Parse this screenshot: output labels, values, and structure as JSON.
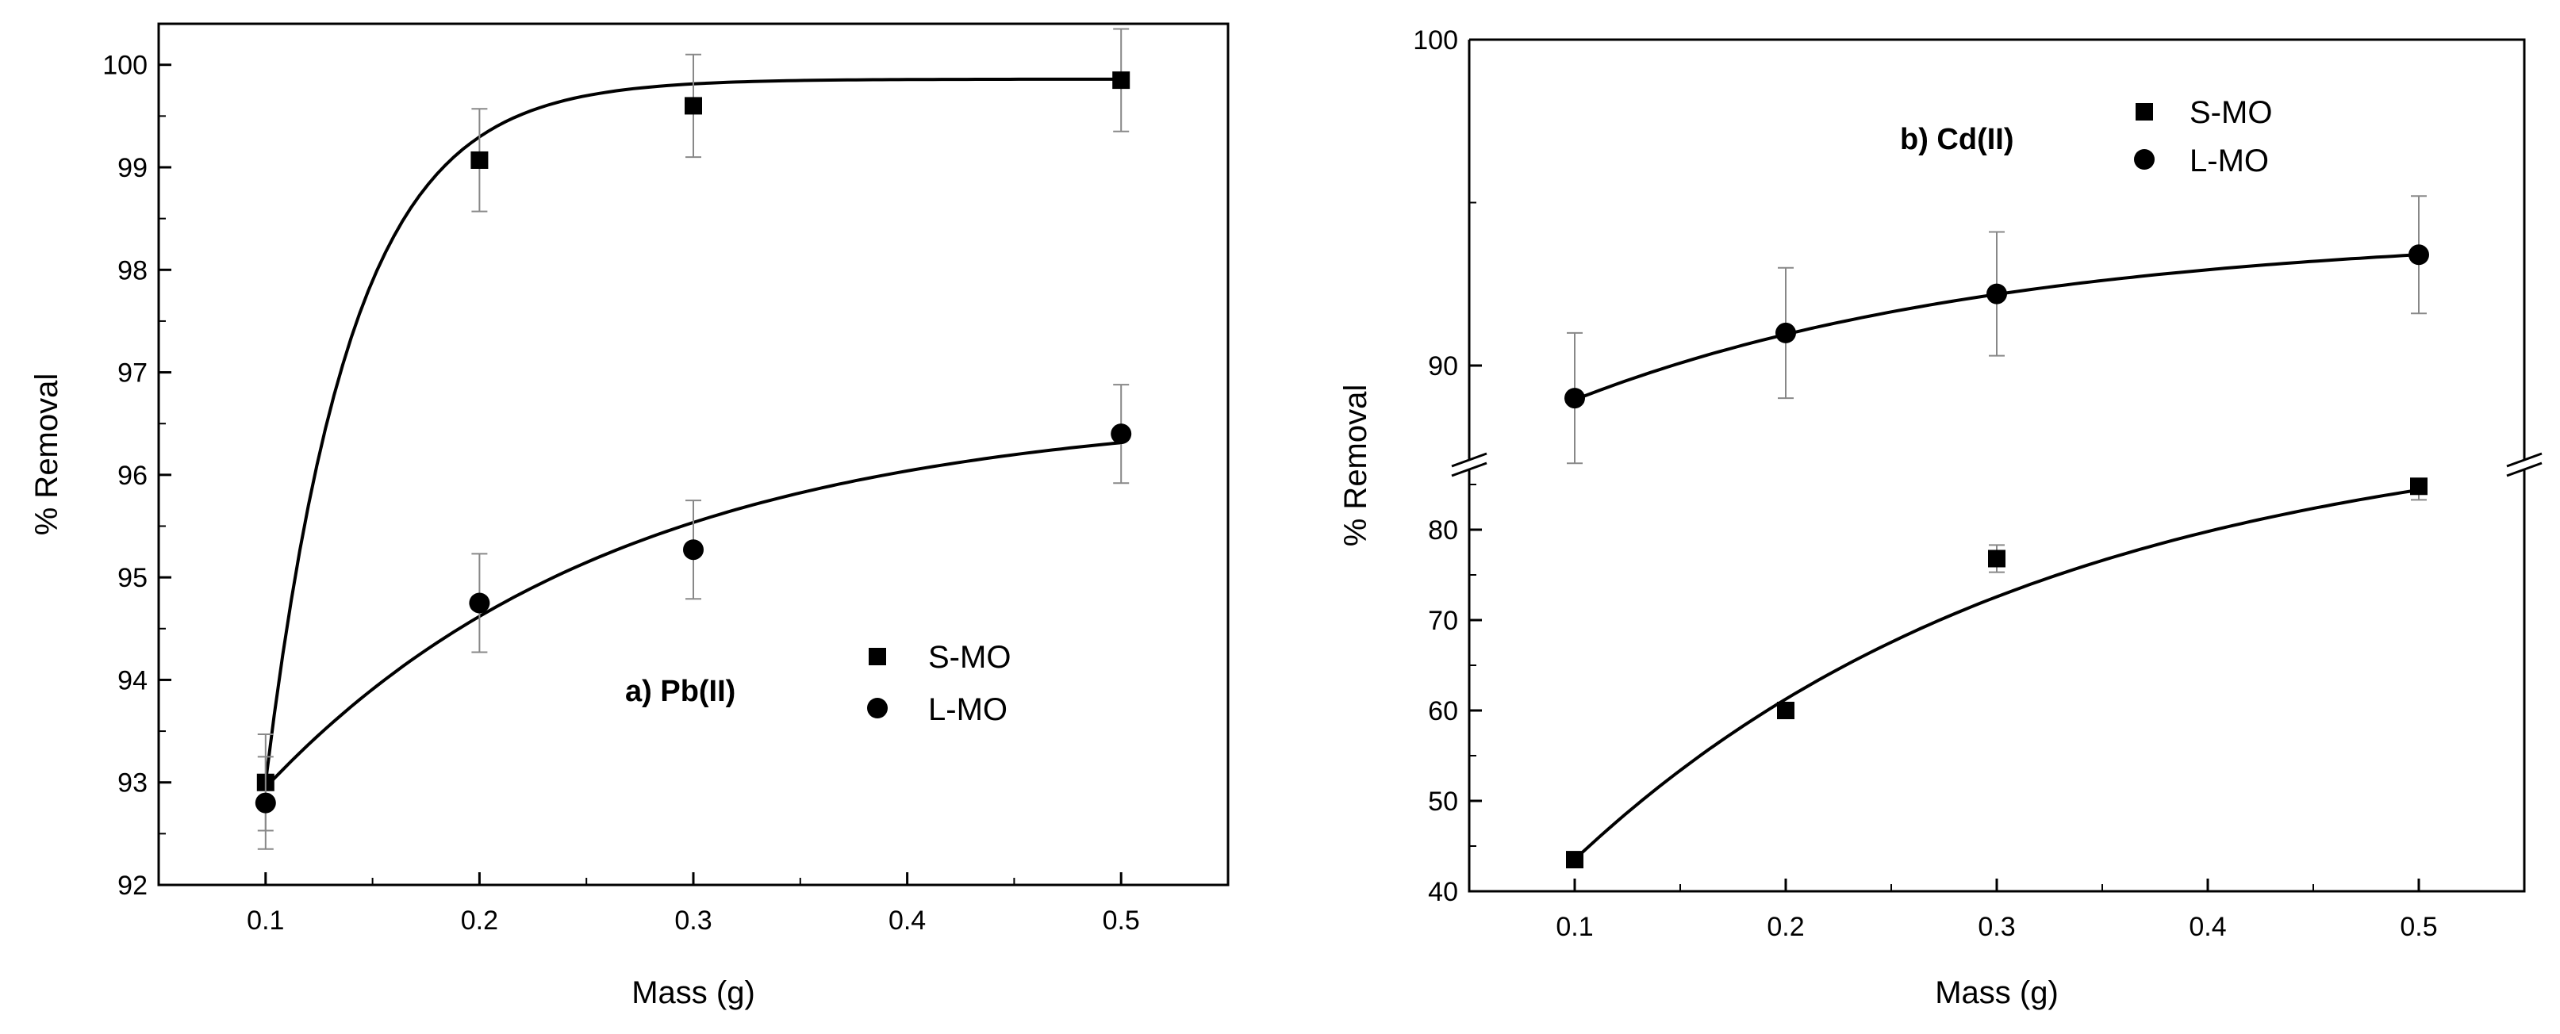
{
  "chart_data": [
    {
      "type": "scatter",
      "panel": "a",
      "annotation": "a) Pb(II)",
      "xlabel": "Mass (g)",
      "ylabel": "% Removal",
      "xlim": [
        0.05,
        0.55
      ],
      "ylim": [
        92,
        100.4
      ],
      "xticks": [
        0.1,
        0.2,
        0.3,
        0.4,
        0.5
      ],
      "xtick_labels": [
        "0.1",
        "0.2",
        "0.3",
        "0.4",
        "0.5"
      ],
      "yticks": [
        92,
        93,
        94,
        95,
        96,
        97,
        98,
        99,
        100
      ],
      "ytick_labels": [
        "92",
        "93",
        "94",
        "95",
        "96",
        "97",
        "98",
        "99",
        "100"
      ],
      "legend_position": "lower-right",
      "series": [
        {
          "name": "S-MO",
          "marker": "square",
          "x": [
            0.1,
            0.2,
            0.3,
            0.5
          ],
          "y": [
            93.0,
            99.07,
            99.6,
            99.85
          ],
          "err": [
            0.47,
            0.5,
            0.5,
            0.5
          ],
          "fit": {
            "type": "exp_rise",
            "y0": 93.0,
            "A": 6.86,
            "k": 25
          }
        },
        {
          "name": "L-MO",
          "marker": "circle",
          "x": [
            0.1,
            0.2,
            0.3,
            0.5
          ],
          "y": [
            92.8,
            94.75,
            95.27,
            96.4
          ],
          "err": [
            0.45,
            0.48,
            0.48,
            0.48
          ],
          "fit": {
            "type": "exp_rise",
            "y0": 92.95,
            "A": 3.7,
            "k": 6.0
          }
        }
      ]
    },
    {
      "type": "scatter",
      "panel": "b",
      "annotation": "b) Cd(II)",
      "xlabel": "Mass (g)",
      "ylabel": "% Removal",
      "xlim": [
        0.05,
        0.55
      ],
      "axis_break": true,
      "upper_range": [
        86.5,
        100
      ],
      "lower_range": [
        40,
        85
      ],
      "upper_yticks": [
        90,
        100
      ],
      "upper_ytick_labels": [
        "90",
        "100"
      ],
      "lower_yticks": [
        40,
        50,
        60,
        70,
        80
      ],
      "lower_ytick_labels": [
        "40",
        "50",
        "60",
        "70",
        "80"
      ],
      "xticks": [
        0.1,
        0.2,
        0.3,
        0.4,
        0.5
      ],
      "xtick_labels": [
        "0.1",
        "0.2",
        "0.3",
        "0.4",
        "0.5"
      ],
      "legend_position": "top-right",
      "series": [
        {
          "name": "S-MO",
          "marker": "square",
          "x": [
            0.1,
            0.2,
            0.3,
            0.5
          ],
          "y": [
            43.5,
            60.0,
            76.8,
            84.8
          ],
          "err": [
            0.5,
            0.5,
            1.5,
            1.5
          ],
          "fit": {
            "type": "exp_rise",
            "y0": 43.5,
            "A": 49.0,
            "k": 4.5
          }
        },
        {
          "name": "L-MO",
          "marker": "circle",
          "x": [
            0.1,
            0.2,
            0.3,
            0.5
          ],
          "y": [
            89.0,
            91.0,
            92.2,
            93.4
          ],
          "err": [
            2.0,
            2.0,
            1.9,
            1.8
          ],
          "fit": {
            "type": "exp_rise",
            "y0": 88.95,
            "A": 5.18,
            "k": 4.9
          }
        }
      ]
    }
  ]
}
